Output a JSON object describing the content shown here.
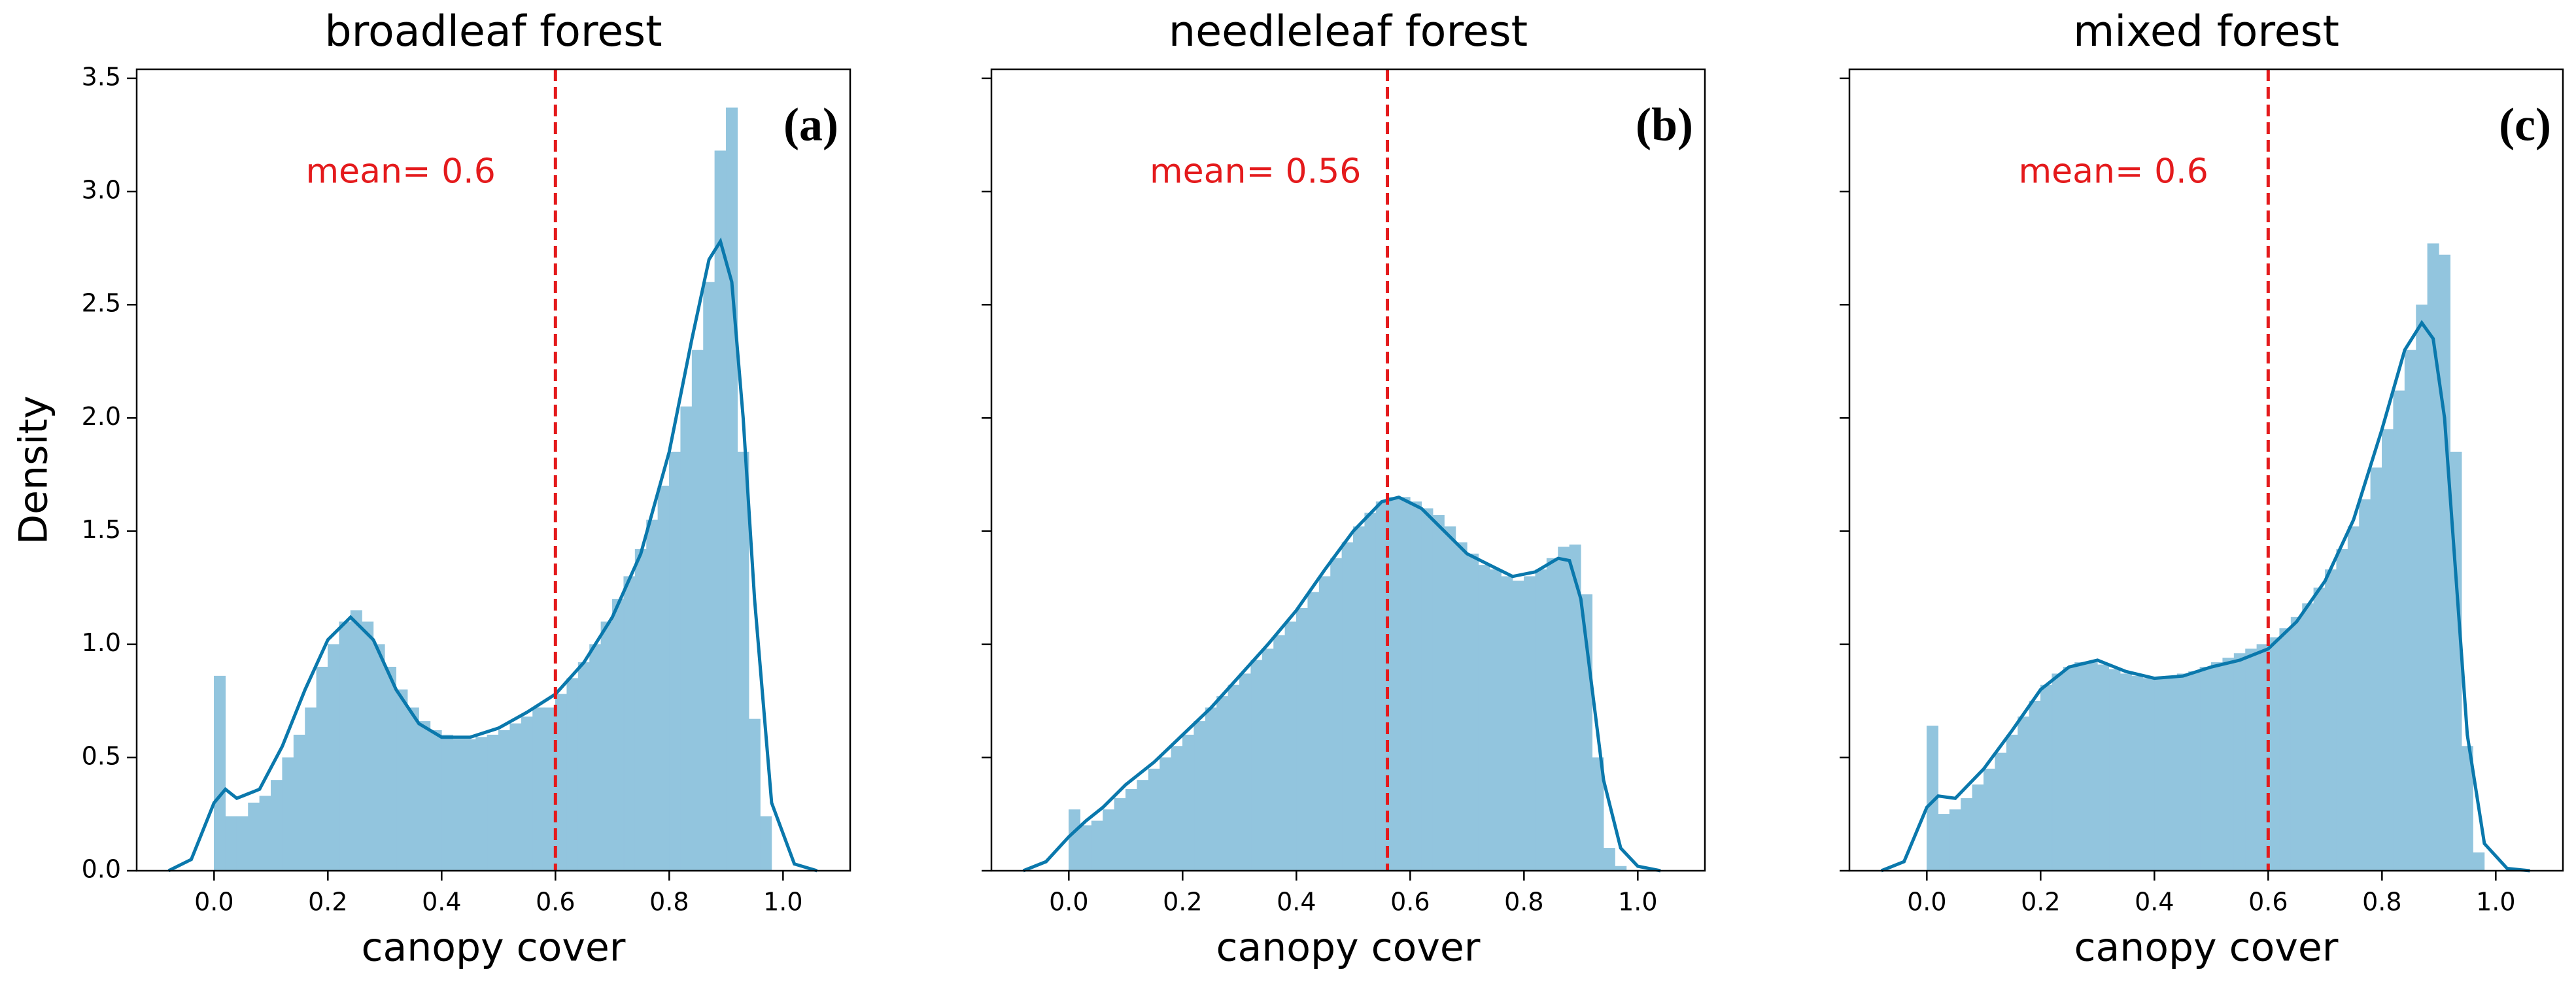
{
  "chart_data": [
    {
      "type": "histogram",
      "title": "broadleaf forest",
      "xlabel": "canopy cover",
      "ylabel": "Density",
      "panel_label": "(a)",
      "annotation": "mean= 0.6",
      "mean": 0.6,
      "color": "#92c5de",
      "kde_color": "#0a78ac",
      "mean_color": "#e41a1c",
      "bins": [
        0,
        0.02,
        0.04,
        0.06,
        0.08,
        0.1,
        0.12,
        0.14,
        0.16,
        0.18,
        0.2,
        0.22,
        0.24,
        0.26,
        0.28,
        0.3,
        0.32,
        0.34,
        0.36,
        0.38,
        0.4,
        0.42,
        0.44,
        0.46,
        0.48,
        0.5,
        0.52,
        0.54,
        0.56,
        0.58,
        0.6,
        0.62,
        0.64,
        0.66,
        0.68,
        0.7,
        0.72,
        0.74,
        0.76,
        0.78,
        0.8,
        0.82,
        0.84,
        0.86,
        0.88,
        0.9,
        0.92,
        0.94,
        0.96,
        0.98
      ],
      "counts": [
        0.86,
        0.24,
        0.24,
        0.3,
        0.33,
        0.4,
        0.5,
        0.6,
        0.72,
        0.9,
        1.0,
        1.1,
        1.15,
        1.1,
        1.0,
        0.9,
        0.8,
        0.72,
        0.66,
        0.62,
        0.6,
        0.58,
        0.58,
        0.59,
        0.6,
        0.62,
        0.65,
        0.68,
        0.72,
        0.72,
        0.78,
        0.85,
        0.92,
        1.0,
        1.1,
        1.2,
        1.3,
        1.42,
        1.55,
        1.7,
        1.85,
        2.05,
        2.3,
        2.6,
        3.18,
        3.37,
        1.85,
        0.67,
        0.24
      ],
      "kde": {
        "x": [
          -0.08,
          -0.04,
          0,
          0.02,
          0.04,
          0.08,
          0.12,
          0.16,
          0.2,
          0.24,
          0.28,
          0.32,
          0.36,
          0.4,
          0.45,
          0.5,
          0.55,
          0.6,
          0.65,
          0.7,
          0.75,
          0.8,
          0.84,
          0.87,
          0.89,
          0.91,
          0.93,
          0.95,
          0.98,
          1.02,
          1.06
        ],
        "values": [
          0,
          0.05,
          0.3,
          0.36,
          0.32,
          0.36,
          0.55,
          0.8,
          1.02,
          1.12,
          1.02,
          0.8,
          0.65,
          0.59,
          0.59,
          0.63,
          0.7,
          0.78,
          0.92,
          1.12,
          1.4,
          1.85,
          2.35,
          2.7,
          2.78,
          2.6,
          2.0,
          1.2,
          0.3,
          0.03,
          0
        ]
      },
      "xlim": [
        -0.136,
        1.118
      ],
      "ylim": [
        0,
        3.54
      ],
      "xticks": [
        {
          "value": 0,
          "label": "0.0"
        },
        0.2,
        0.4,
        0.6,
        0.8,
        {
          "value": 1,
          "label": "1.0"
        }
      ],
      "yticks": [
        {
          "value": 0,
          "label": "0.0"
        },
        0.5,
        {
          "value": 1,
          "label": "1.0"
        },
        1.5,
        {
          "value": 2,
          "label": "2.0"
        },
        2.5,
        {
          "value": 3,
          "label": "3.0"
        },
        3.5
      ]
    },
    {
      "type": "histogram",
      "title": "needleleaf forest",
      "xlabel": "canopy cover",
      "panel_label": "(b)",
      "annotation": "mean= 0.56",
      "mean": 0.56,
      "color": "#92c5de",
      "kde_color": "#0a78ac",
      "mean_color": "#e41a1c",
      "bins": [
        0,
        0.02,
        0.04,
        0.06,
        0.08,
        0.1,
        0.12,
        0.14,
        0.16,
        0.18,
        0.2,
        0.22,
        0.24,
        0.26,
        0.28,
        0.3,
        0.32,
        0.34,
        0.36,
        0.38,
        0.4,
        0.42,
        0.44,
        0.46,
        0.48,
        0.5,
        0.52,
        0.54,
        0.56,
        0.58,
        0.6,
        0.62,
        0.64,
        0.66,
        0.68,
        0.7,
        0.72,
        0.74,
        0.76,
        0.78,
        0.8,
        0.82,
        0.84,
        0.86,
        0.88,
        0.9,
        0.92,
        0.94,
        0.96,
        0.98
      ],
      "counts": [
        0.27,
        0.2,
        0.22,
        0.27,
        0.32,
        0.36,
        0.4,
        0.45,
        0.5,
        0.55,
        0.6,
        0.66,
        0.72,
        0.77,
        0.82,
        0.87,
        0.93,
        0.98,
        1.04,
        1.1,
        1.16,
        1.23,
        1.3,
        1.38,
        1.45,
        1.52,
        1.58,
        1.63,
        1.65,
        1.65,
        1.63,
        1.6,
        1.57,
        1.52,
        1.45,
        1.4,
        1.35,
        1.33,
        1.3,
        1.28,
        1.3,
        1.33,
        1.38,
        1.43,
        1.44,
        1.22,
        0.5,
        0.1,
        0.02
      ],
      "kde": {
        "x": [
          -0.08,
          -0.04,
          0,
          0.03,
          0.06,
          0.1,
          0.15,
          0.2,
          0.25,
          0.3,
          0.35,
          0.4,
          0.45,
          0.5,
          0.55,
          0.58,
          0.62,
          0.66,
          0.7,
          0.74,
          0.78,
          0.82,
          0.86,
          0.88,
          0.9,
          0.92,
          0.94,
          0.97,
          1.0,
          1.04
        ],
        "values": [
          0,
          0.04,
          0.15,
          0.22,
          0.28,
          0.38,
          0.48,
          0.6,
          0.72,
          0.86,
          1.0,
          1.15,
          1.33,
          1.5,
          1.63,
          1.65,
          1.6,
          1.5,
          1.4,
          1.35,
          1.3,
          1.32,
          1.38,
          1.37,
          1.2,
          0.8,
          0.4,
          0.1,
          0.02,
          0
        ]
      },
      "xlim": [
        -0.136,
        1.118
      ],
      "ylim": [
        0,
        3.54
      ],
      "xticks": [
        {
          "value": 0,
          "label": "0.0"
        },
        0.2,
        0.4,
        0.6,
        0.8,
        {
          "value": 1,
          "label": "1.0"
        }
      ]
    },
    {
      "type": "histogram",
      "title": "mixed forest",
      "xlabel": "canopy cover",
      "panel_label": "(c)",
      "annotation": "mean= 0.6",
      "mean": 0.6,
      "color": "#92c5de",
      "kde_color": "#0a78ac",
      "mean_color": "#e41a1c",
      "bins": [
        0,
        0.02,
        0.04,
        0.06,
        0.08,
        0.1,
        0.12,
        0.14,
        0.16,
        0.18,
        0.2,
        0.22,
        0.24,
        0.26,
        0.28,
        0.3,
        0.32,
        0.34,
        0.36,
        0.38,
        0.4,
        0.42,
        0.44,
        0.46,
        0.48,
        0.5,
        0.52,
        0.54,
        0.56,
        0.58,
        0.6,
        0.62,
        0.64,
        0.66,
        0.68,
        0.7,
        0.72,
        0.74,
        0.76,
        0.78,
        0.8,
        0.82,
        0.84,
        0.86,
        0.88,
        0.9,
        0.92,
        0.94,
        0.96,
        0.98
      ],
      "counts": [
        0.64,
        0.25,
        0.27,
        0.32,
        0.38,
        0.45,
        0.52,
        0.6,
        0.68,
        0.75,
        0.82,
        0.87,
        0.9,
        0.92,
        0.92,
        0.91,
        0.89,
        0.87,
        0.86,
        0.85,
        0.85,
        0.86,
        0.87,
        0.88,
        0.9,
        0.92,
        0.94,
        0.96,
        0.98,
        1.0,
        1.03,
        1.07,
        1.12,
        1.18,
        1.25,
        1.33,
        1.42,
        1.52,
        1.64,
        1.78,
        1.95,
        2.12,
        2.3,
        2.5,
        2.77,
        2.72,
        1.85,
        0.55,
        0.08
      ],
      "kde": {
        "x": [
          -0.08,
          -0.04,
          0,
          0.02,
          0.05,
          0.1,
          0.15,
          0.2,
          0.25,
          0.3,
          0.35,
          0.4,
          0.45,
          0.5,
          0.55,
          0.6,
          0.65,
          0.7,
          0.75,
          0.8,
          0.84,
          0.87,
          0.89,
          0.91,
          0.93,
          0.95,
          0.98,
          1.02,
          1.06
        ],
        "values": [
          0,
          0.04,
          0.28,
          0.33,
          0.32,
          0.45,
          0.62,
          0.8,
          0.9,
          0.93,
          0.88,
          0.85,
          0.86,
          0.9,
          0.93,
          0.98,
          1.1,
          1.28,
          1.55,
          1.95,
          2.3,
          2.42,
          2.35,
          2.0,
          1.3,
          0.6,
          0.12,
          0.01,
          0
        ]
      },
      "xlim": [
        -0.136,
        1.118
      ],
      "ylim": [
        0,
        3.54
      ],
      "xticks": [
        {
          "value": 0,
          "label": "0.0"
        },
        0.2,
        0.4,
        0.6,
        0.8,
        {
          "value": 1,
          "label": "1.0"
        }
      ]
    }
  ]
}
